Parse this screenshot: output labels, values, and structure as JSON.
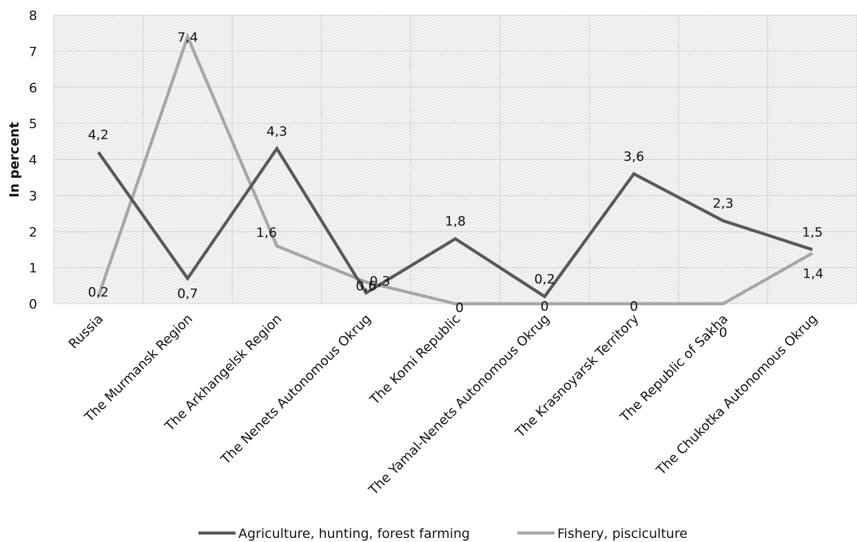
{
  "chart_data": {
    "type": "line",
    "title": "",
    "xlabel": "",
    "ylabel": "In percent",
    "ylim": [
      0,
      8
    ],
    "yticks": [
      0,
      1,
      2,
      3,
      4,
      5,
      6,
      7,
      8
    ],
    "grid": true,
    "legend_position": "bottom",
    "categories": [
      "Russia",
      "The Murmansk Region",
      "The Arkhangelsk Region",
      "The Nenets Autonomous Okrug",
      "The Komi Republic",
      "The Yamal-Nenets Autonomous Okrug",
      "The Krasnoyarsk Territory",
      "The Republic of Sakha",
      "The Chukotka Autonomous Okrug"
    ],
    "series": [
      {
        "name": "Agriculture, hunting, forest farming",
        "color": "#595959",
        "values": [
          4.2,
          0.7,
          4.3,
          0.3,
          1.8,
          0.2,
          3.6,
          2.3,
          1.5
        ],
        "labels": [
          "4,2",
          "0,7",
          "4,3",
          "0,3",
          "1,8",
          "0,2",
          "3,6",
          "2,3",
          "1,5"
        ]
      },
      {
        "name": "Fishery, pisciculture",
        "color": "#a6a6a6",
        "values": [
          0.2,
          7.4,
          1.6,
          0.6,
          0,
          0,
          0,
          0,
          1.4
        ],
        "labels": [
          "0,2",
          "7,4",
          "1,6",
          "0,6",
          "0",
          "0",
          "0",
          "0",
          "1,4"
        ]
      }
    ]
  }
}
